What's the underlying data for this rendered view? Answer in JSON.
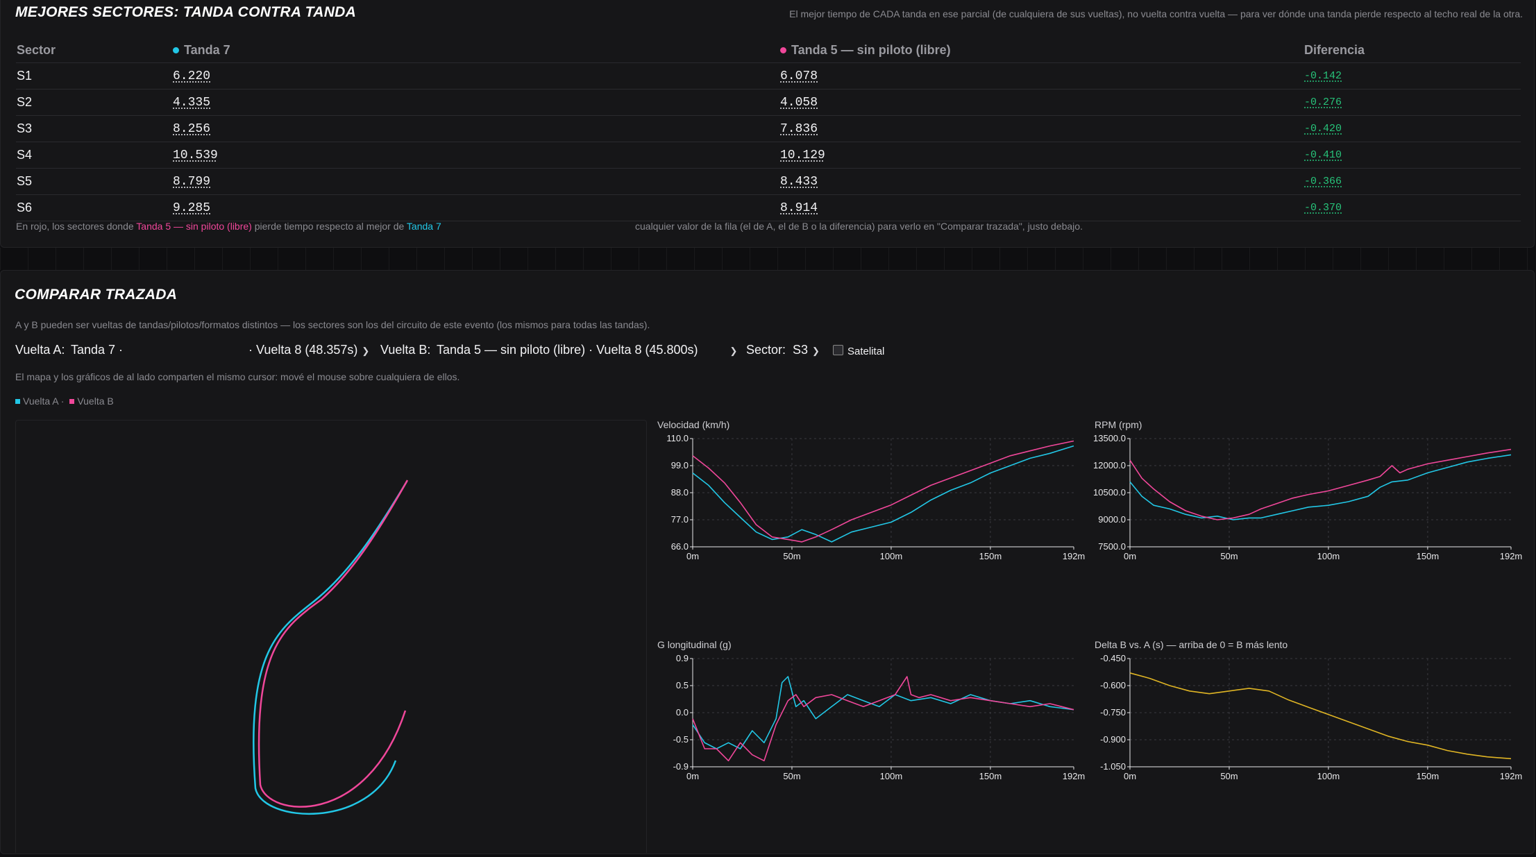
{
  "sectors_panel": {
    "title": "MEJORES SECTORES: TANDA CONTRA TANDA",
    "description": "El mejor tiempo de CADA tanda en ese parcial (de cualquiera de sus vueltas), no vuelta contra vuelta — para ver dónde una tanda pierde respecto al techo real de la otra.",
    "columns": {
      "sector": "Sector",
      "a": "Tanda 7",
      "b": "Tanda 5 — sin piloto (libre)",
      "diff": "Diferencia"
    },
    "colors": {
      "a": "#22c7e6",
      "b": "#f0479a",
      "faster": "#27c47a"
    },
    "rows": [
      {
        "sector": "S1",
        "a": "6.220",
        "b": "6.078",
        "diff": "-0.142"
      },
      {
        "sector": "S2",
        "a": "4.335",
        "b": "4.058",
        "diff": "-0.276"
      },
      {
        "sector": "S3",
        "a": "8.256",
        "b": "7.836",
        "diff": "-0.420"
      },
      {
        "sector": "S4",
        "a": "10.539",
        "b": "10.129",
        "diff": "-0.410"
      },
      {
        "sector": "S5",
        "a": "8.799",
        "b": "8.433",
        "diff": "-0.366"
      },
      {
        "sector": "S6",
        "a": "9.285",
        "b": "8.914",
        "diff": "-0.370"
      }
    ],
    "footnote_prefix": "En rojo, los sectores donde",
    "footnote_b": "Tanda 5 — sin piloto (libre)",
    "footnote_mid": "pierde tiempo respecto al mejor de",
    "footnote_a": "Tanda 7",
    "footnote_right": "cualquier valor de la fila (el de A, el de B o la diferencia) para verlo en \"Comparar trazada\", justo debajo."
  },
  "compare_panel": {
    "title": "COMPARAR TRAZADA",
    "description": "A y B pueden ser vueltas de tandas/pilotos/formatos distintos — los sectores son los del circuito de este evento (los mismos para todas las tandas).",
    "lap_a_label": "Vuelta A:",
    "lap_a_tanda": "Tanda 7 ·",
    "lap_a_lap": "· Vuelta 8 (48.357s)",
    "lap_b_label": "Vuelta B:",
    "lap_b_value": "Tanda 5 — sin piloto (libre) · Vuelta 8 (45.800s)",
    "sector_label": "Sector:",
    "sector_value": "S3",
    "satellite_label": "Satelital",
    "cursor_note": "El mapa y los gráficos de al lado comparten el mismo cursor: mové el mouse sobre cualquiera de ellos.",
    "legend_a": "Vuelta A ·",
    "legend_b": "Vuelta B"
  },
  "chart_data": [
    {
      "type": "line",
      "title": "Velocidad (km/h)",
      "xlim": [
        0,
        192
      ],
      "ylim": [
        66,
        110
      ],
      "yticks": [
        "110.0",
        "99.0",
        "88.0",
        "77.0",
        "66.0"
      ],
      "xticks": [
        "0m",
        "50m",
        "100m",
        "150m",
        "192m"
      ],
      "series": [
        {
          "name": "Vuelta A",
          "color": "#22c7e6",
          "x": [
            0,
            8,
            16,
            24,
            32,
            40,
            48,
            55,
            62,
            70,
            80,
            90,
            100,
            110,
            120,
            130,
            140,
            150,
            160,
            170,
            180,
            192
          ],
          "y": [
            96,
            91,
            84,
            78,
            72,
            69,
            70,
            73,
            71,
            68,
            72,
            74,
            76,
            80,
            85,
            89,
            92,
            96,
            99,
            102,
            104,
            107
          ]
        },
        {
          "name": "Vuelta B",
          "color": "#f0479a",
          "x": [
            0,
            8,
            16,
            24,
            32,
            40,
            48,
            55,
            62,
            70,
            80,
            90,
            100,
            110,
            120,
            130,
            140,
            150,
            160,
            170,
            180,
            192
          ],
          "y": [
            103,
            98,
            92,
            84,
            75,
            70,
            69,
            68,
            70,
            73,
            77,
            80,
            83,
            87,
            91,
            94,
            97,
            100,
            103,
            105,
            107,
            109
          ]
        }
      ]
    },
    {
      "type": "line",
      "title": "RPM (rpm)",
      "xlim": [
        0,
        192
      ],
      "ylim": [
        7500,
        13500
      ],
      "yticks": [
        "13500.0",
        "12000.0",
        "10500.0",
        "9000.0",
        "7500.0"
      ],
      "xticks": [
        "0m",
        "50m",
        "100m",
        "150m",
        "192m"
      ],
      "series": [
        {
          "name": "Vuelta A",
          "color": "#22c7e6",
          "x": [
            0,
            6,
            12,
            20,
            28,
            36,
            44,
            52,
            60,
            66,
            74,
            82,
            90,
            100,
            110,
            120,
            126,
            132,
            140,
            150,
            160,
            170,
            180,
            192
          ],
          "y": [
            11100,
            10300,
            9800,
            9600,
            9300,
            9100,
            9200,
            9000,
            9100,
            9100,
            9300,
            9500,
            9700,
            9800,
            10000,
            10300,
            10800,
            11100,
            11200,
            11600,
            11900,
            12200,
            12400,
            12600
          ]
        },
        {
          "name": "Vuelta B",
          "color": "#f0479a",
          "x": [
            0,
            6,
            12,
            20,
            28,
            36,
            44,
            52,
            60,
            66,
            74,
            82,
            90,
            100,
            110,
            120,
            126,
            132,
            136,
            140,
            150,
            160,
            170,
            180,
            192
          ],
          "y": [
            12300,
            11300,
            10700,
            10000,
            9500,
            9200,
            9000,
            9100,
            9300,
            9600,
            9900,
            10200,
            10400,
            10600,
            10900,
            11200,
            11400,
            12000,
            11600,
            11800,
            12100,
            12300,
            12500,
            12700,
            12900
          ]
        }
      ]
    },
    {
      "type": "line",
      "title": "G longitudinal (g)",
      "xlim": [
        0,
        192
      ],
      "ylim": [
        -0.9,
        0.9
      ],
      "yticks": [
        "0.9",
        "0.5",
        "0.0",
        "-0.5",
        "-0.9"
      ],
      "xticks": [
        "0m",
        "50m",
        "100m",
        "150m",
        "192m"
      ],
      "series": [
        {
          "name": "Vuelta A",
          "color": "#22c7e6",
          "x": [
            0,
            6,
            12,
            18,
            24,
            30,
            36,
            42,
            45,
            48,
            52,
            56,
            62,
            70,
            78,
            86,
            94,
            102,
            110,
            120,
            130,
            140,
            150,
            160,
            170,
            180,
            192
          ],
          "y": [
            -0.2,
            -0.5,
            -0.6,
            -0.5,
            -0.6,
            -0.3,
            -0.5,
            -0.1,
            0.5,
            0.6,
            0.1,
            0.2,
            -0.1,
            0.1,
            0.3,
            0.2,
            0.1,
            0.3,
            0.2,
            0.25,
            0.15,
            0.3,
            0.2,
            0.15,
            0.2,
            0.1,
            0.05
          ]
        },
        {
          "name": "Vuelta B",
          "color": "#f0479a",
          "x": [
            0,
            6,
            12,
            18,
            24,
            30,
            36,
            42,
            48,
            52,
            56,
            62,
            70,
            78,
            86,
            94,
            102,
            108,
            110,
            114,
            120,
            130,
            140,
            150,
            160,
            170,
            180,
            192
          ],
          "y": [
            -0.1,
            -0.6,
            -0.6,
            -0.8,
            -0.5,
            -0.7,
            -0.8,
            -0.2,
            0.2,
            0.3,
            0.1,
            0.25,
            0.3,
            0.2,
            0.1,
            0.2,
            0.3,
            0.6,
            0.3,
            0.25,
            0.3,
            0.2,
            0.25,
            0.2,
            0.15,
            0.1,
            0.15,
            0.05
          ]
        }
      ]
    },
    {
      "type": "line",
      "title": "Delta B vs. A (s) — arriba de 0 = B más lento",
      "xlim": [
        0,
        192
      ],
      "ylim": [
        -1.05,
        -0.45
      ],
      "yticks": [
        "-0.450",
        "-0.600",
        "-0.750",
        "-0.900",
        "-1.050"
      ],
      "xticks": [
        "0m",
        "50m",
        "100m",
        "150m",
        "192m"
      ],
      "series": [
        {
          "name": "Delta",
          "color": "#e0b524",
          "x": [
            0,
            10,
            20,
            30,
            40,
            50,
            60,
            70,
            80,
            90,
            100,
            110,
            120,
            130,
            140,
            150,
            160,
            170,
            180,
            192
          ],
          "y": [
            -0.53,
            -0.56,
            -0.6,
            -0.63,
            -0.645,
            -0.63,
            -0.615,
            -0.63,
            -0.68,
            -0.72,
            -0.76,
            -0.8,
            -0.84,
            -0.88,
            -0.91,
            -0.93,
            -0.96,
            -0.98,
            -0.995,
            -1.005
          ]
        }
      ]
    }
  ]
}
